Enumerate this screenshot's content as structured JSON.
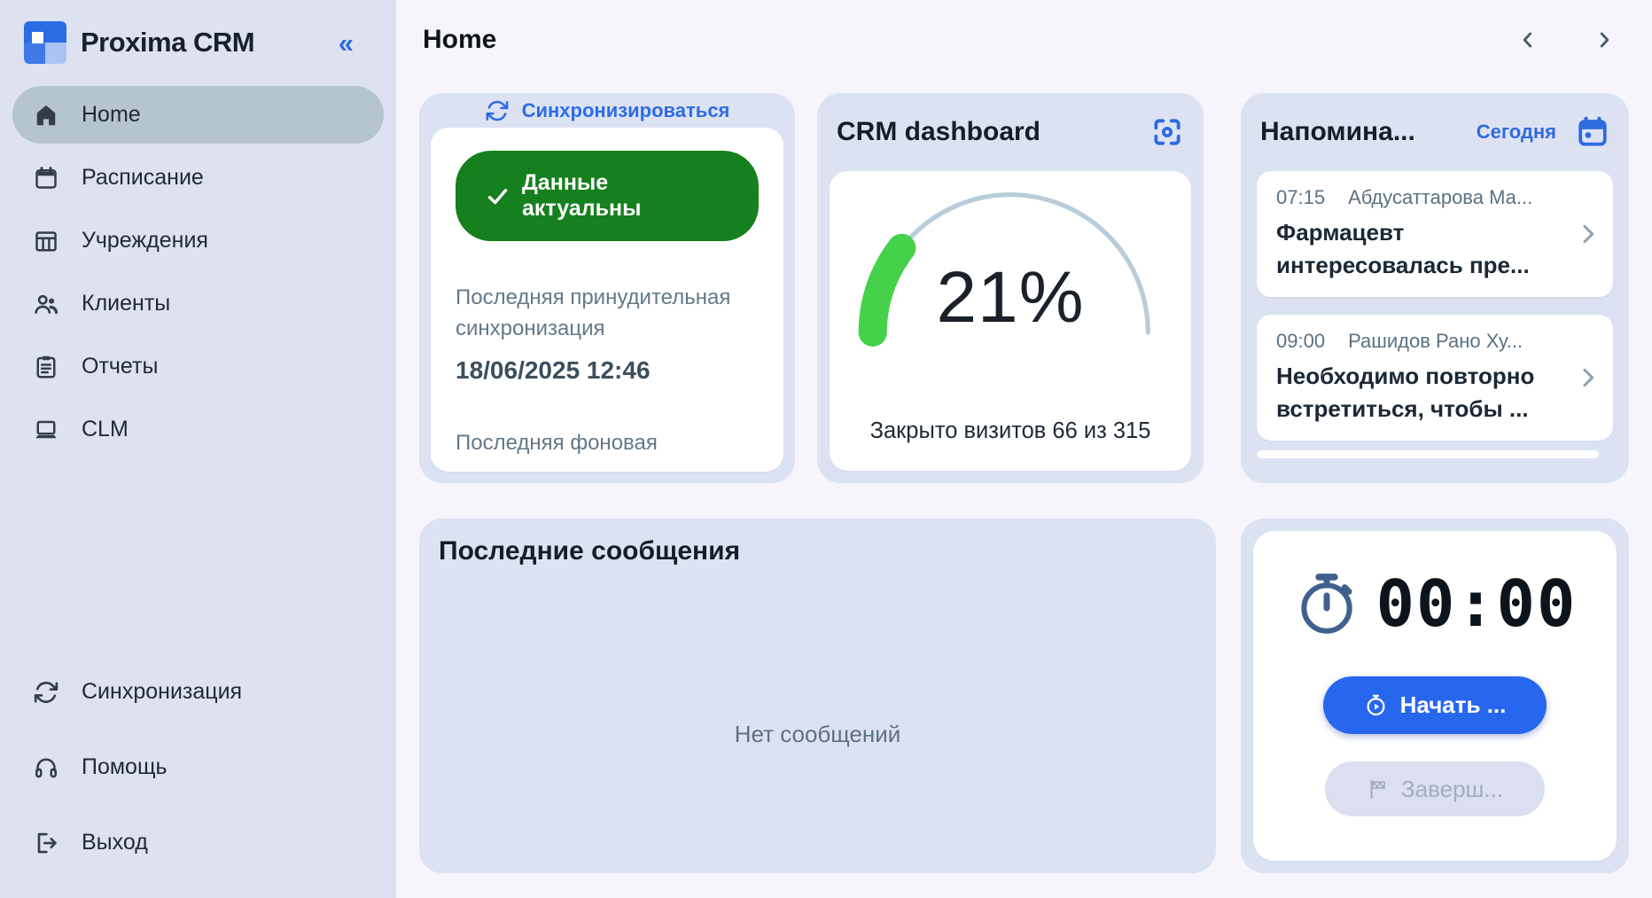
{
  "app": {
    "title": "Proxima CRM",
    "collapse_glyph": "«"
  },
  "sidebar": {
    "items": [
      {
        "label": "Home",
        "icon": "home-icon",
        "active": true
      },
      {
        "label": "Расписание",
        "icon": "calendar-icon",
        "active": false
      },
      {
        "label": "Учреждения",
        "icon": "facility-icon",
        "active": false
      },
      {
        "label": "Клиенты",
        "icon": "clients-icon",
        "active": false
      },
      {
        "label": "Отчеты",
        "icon": "reports-icon",
        "active": false
      },
      {
        "label": "CLM",
        "icon": "laptop-icon",
        "active": false
      }
    ],
    "footer_items": [
      {
        "label": "Синхронизация",
        "icon": "sync-icon"
      },
      {
        "label": "Помощь",
        "icon": "headset-icon"
      },
      {
        "label": "Выход",
        "icon": "logout-icon"
      }
    ]
  },
  "header": {
    "title": "Home"
  },
  "sync_card": {
    "action_label": "Синхронизироваться",
    "status_badge": "Данные актуальны",
    "last_forced_label": "Последняя принудительная синхронизация",
    "last_forced_value": "18/06/2025 12:46",
    "last_background_label": "Последняя фоновая"
  },
  "dashboard_card": {
    "title": "CRM dashboard",
    "percent_label": "21%",
    "percent_value": 21,
    "caption": "Закрыто визитов 66 из 315",
    "visits_closed": 66,
    "visits_total": 315
  },
  "reminders_card": {
    "title": "Напомина...",
    "today_label": "Сегодня",
    "items": [
      {
        "time": "07:15",
        "name": "Абдусаттарова Ма...",
        "text": "Фармацевт интересовалась пре..."
      },
      {
        "time": "09:00",
        "name": "Рашидов Рано Ху...",
        "text": "Необходимо повторно встретиться, чтобы ..."
      }
    ]
  },
  "messages_card": {
    "title": "Последние сообщения",
    "empty_text": "Нет сообщений"
  },
  "timer_card": {
    "time": "00:00",
    "start_label": "Начать ...",
    "finish_label": "Заверш..."
  },
  "colors": {
    "accent_blue": "#2b6ce8",
    "success_green": "#15801d",
    "gauge_green": "#46d14b",
    "gauge_track": "#b8ccda",
    "sidebar_bg": "#dde1f0",
    "card_bg": "#dde2f3",
    "active_item_bg": "#b5c5cd"
  }
}
